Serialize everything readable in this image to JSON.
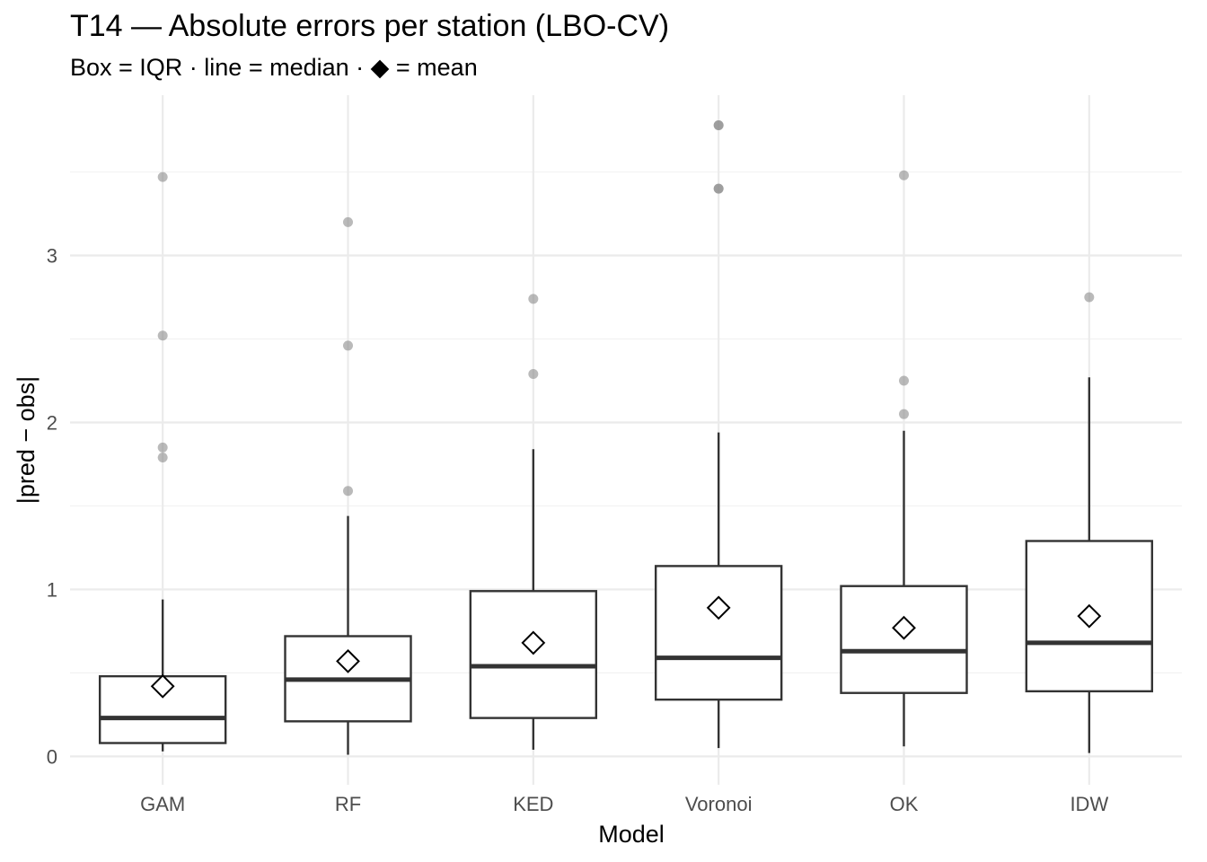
{
  "chart_data": {
    "type": "box",
    "title": "T14 — Absolute errors per station (LBO-CV)",
    "subtitle": "Box = IQR · line = median · ◆ = mean",
    "xlabel": "Model",
    "ylabel": "|pred − obs|",
    "ylim": [
      -0.17,
      3.96
    ],
    "yticks": [
      0,
      1,
      2,
      3
    ],
    "ytick_labels": [
      "0",
      "1",
      "2",
      "3"
    ],
    "grid": true,
    "legend": "none",
    "categories": [
      "GAM",
      "RF",
      "KED",
      "Voronoi",
      "OK",
      "IDW"
    ],
    "series": [
      {
        "category": "GAM",
        "whisker_low": 0.03,
        "q1": 0.08,
        "median": 0.23,
        "q3": 0.48,
        "whisker_high": 0.94,
        "mean": 0.42,
        "outliers": [
          1.79,
          1.85,
          2.52,
          3.47
        ]
      },
      {
        "category": "RF",
        "whisker_low": 0.01,
        "q1": 0.21,
        "median": 0.46,
        "q3": 0.72,
        "whisker_high": 1.44,
        "mean": 0.57,
        "outliers": [
          1.59,
          2.46,
          3.2
        ]
      },
      {
        "category": "KED",
        "whisker_low": 0.04,
        "q1": 0.23,
        "median": 0.54,
        "q3": 0.99,
        "whisker_high": 1.84,
        "mean": 0.68,
        "outliers": [
          2.29,
          2.74
        ]
      },
      {
        "category": "Voronoi",
        "whisker_low": 0.05,
        "q1": 0.34,
        "median": 0.59,
        "q3": 1.14,
        "whisker_high": 1.94,
        "mean": 0.89,
        "outliers": [
          3.4,
          3.4,
          3.78,
          3.78
        ]
      },
      {
        "category": "OK",
        "whisker_low": 0.06,
        "q1": 0.38,
        "median": 0.63,
        "q3": 1.02,
        "whisker_high": 1.95,
        "mean": 0.77,
        "outliers": [
          2.05,
          2.25,
          3.48
        ]
      },
      {
        "category": "IDW",
        "whisker_low": 0.02,
        "q1": 0.39,
        "median": 0.68,
        "q3": 1.29,
        "whisker_high": 2.27,
        "mean": 0.84,
        "outliers": [
          2.75
        ]
      }
    ],
    "colors": {
      "box_stroke": "#333333",
      "box_fill": "#ffffff",
      "outlier": "#8c8c8c",
      "grid": "#ebebeb"
    }
  }
}
